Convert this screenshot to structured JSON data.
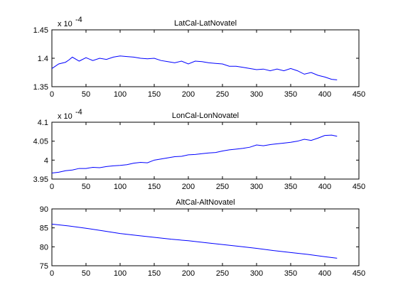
{
  "figure": {
    "background": "#ffffff",
    "line_color": "#0000ff"
  },
  "chart_data": [
    {
      "type": "line",
      "title": "LatCal-LatNovatel",
      "xlabel": "",
      "ylabel": "",
      "xlim": [
        0,
        450
      ],
      "ylim": [
        0.000135,
        0.000145
      ],
      "x_ticks": [
        0,
        50,
        100,
        150,
        200,
        250,
        300,
        350,
        400,
        450
      ],
      "x_tick_labels": [
        "0",
        "50",
        "100",
        "150",
        "200",
        "250",
        "300",
        "350",
        "400",
        "450"
      ],
      "y_ticks": [
        0.000135,
        0.00014,
        0.000145
      ],
      "y_tick_labels": [
        "1.35",
        "1.4",
        "1.45"
      ],
      "exponent_base": "x 10",
      "exponent_power": "-4",
      "grid": false,
      "series": [
        {
          "x": [
            0,
            10,
            20,
            25,
            30,
            40,
            50,
            60,
            70,
            80,
            90,
            100,
            110,
            120,
            130,
            140,
            150,
            160,
            170,
            180,
            190,
            200,
            210,
            220,
            230,
            240,
            250,
            260,
            270,
            280,
            290,
            300,
            310,
            320,
            330,
            340,
            350,
            360,
            370,
            380,
            390,
            400,
            410,
            418
          ],
          "y": [
            0.0001382,
            0.000139,
            0.0001393,
            0.0001397,
            0.0001402,
            0.0001395,
            0.0001401,
            0.0001396,
            0.00014,
            0.0001398,
            0.0001402,
            0.0001404,
            0.0001403,
            0.0001402,
            0.00014,
            0.0001399,
            0.00014,
            0.0001396,
            0.0001394,
            0.0001392,
            0.0001395,
            0.000139,
            0.0001395,
            0.0001394,
            0.0001392,
            0.0001391,
            0.000139,
            0.0001386,
            0.0001386,
            0.0001384,
            0.0001382,
            0.000138,
            0.0001381,
            0.0001378,
            0.0001381,
            0.0001378,
            0.0001382,
            0.0001378,
            0.0001372,
            0.0001375,
            0.000137,
            0.0001367,
            0.0001363,
            0.0001362
          ]
        }
      ]
    },
    {
      "type": "line",
      "title": "LonCal-LonNovatel",
      "xlabel": "",
      "ylabel": "",
      "xlim": [
        0,
        450
      ],
      "ylim": [
        0.000395,
        0.00041
      ],
      "x_ticks": [
        0,
        50,
        100,
        150,
        200,
        250,
        300,
        350,
        400,
        450
      ],
      "x_tick_labels": [
        "0",
        "50",
        "100",
        "150",
        "200",
        "250",
        "300",
        "350",
        "400",
        "450"
      ],
      "y_ticks": [
        0.000395,
        0.0004,
        0.000405,
        0.00041
      ],
      "y_tick_labels": [
        "3.95",
        "4",
        "4.05",
        "4.1"
      ],
      "exponent_base": "x 10",
      "exponent_power": "-4",
      "grid": false,
      "series": [
        {
          "x": [
            0,
            10,
            20,
            30,
            40,
            50,
            60,
            70,
            80,
            90,
            100,
            110,
            120,
            130,
            140,
            150,
            160,
            170,
            180,
            190,
            200,
            210,
            220,
            230,
            240,
            250,
            260,
            270,
            280,
            290,
            300,
            310,
            320,
            330,
            340,
            350,
            360,
            370,
            380,
            390,
            400,
            410,
            418
          ],
          "y": [
            0.0003966,
            0.0003968,
            0.0003972,
            0.0003974,
            0.0003978,
            0.0003978,
            0.0003981,
            0.000398,
            0.0003983,
            0.0003985,
            0.0003986,
            0.0003988,
            0.0003992,
            0.0003994,
            0.0003993,
            0.0004,
            0.0004003,
            0.0004006,
            0.0004009,
            0.000401,
            0.0004014,
            0.0004015,
            0.0004017,
            0.0004019,
            0.000402,
            0.0004024,
            0.0004027,
            0.0004029,
            0.0004031,
            0.0004034,
            0.000404,
            0.0004038,
            0.0004041,
            0.0004043,
            0.0004045,
            0.0004047,
            0.000405,
            0.0004055,
            0.0004052,
            0.0004058,
            0.0004065,
            0.0004066,
            0.0004063
          ]
        }
      ]
    },
    {
      "type": "line",
      "title": "AltCal-AltNovatel",
      "xlabel": "",
      "ylabel": "",
      "xlim": [
        0,
        450
      ],
      "ylim": [
        75,
        90
      ],
      "x_ticks": [
        0,
        50,
        100,
        150,
        200,
        250,
        300,
        350,
        400,
        450
      ],
      "x_tick_labels": [
        "0",
        "50",
        "100",
        "150",
        "200",
        "250",
        "300",
        "350",
        "400",
        "450"
      ],
      "y_ticks": [
        75,
        80,
        85,
        90
      ],
      "y_tick_labels": [
        "75",
        "80",
        "85",
        "90"
      ],
      "grid": false,
      "series": [
        {
          "x": [
            0,
            25,
            50,
            75,
            100,
            125,
            150,
            175,
            200,
            225,
            250,
            275,
            300,
            325,
            350,
            375,
            400,
            418
          ],
          "y": [
            86.0,
            85.5,
            84.9,
            84.2,
            83.5,
            83.0,
            82.5,
            82.0,
            81.6,
            81.1,
            80.6,
            80.1,
            79.6,
            79.0,
            78.5,
            78.0,
            77.4,
            77.0
          ]
        }
      ]
    }
  ]
}
